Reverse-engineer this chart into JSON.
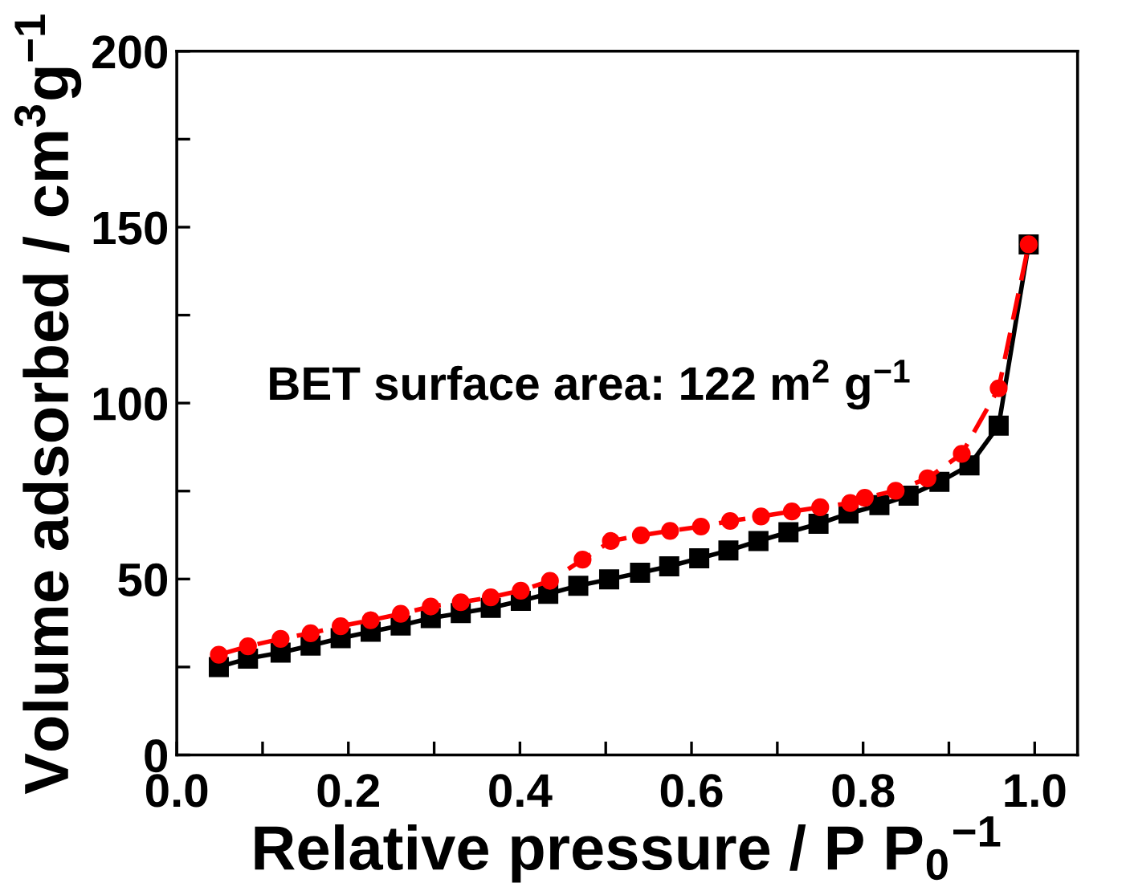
{
  "chart_data": {
    "type": "line",
    "xlabel": "Relative pressure / P P$_{0}$$^{−1}$",
    "ylabel": "Volume adsorbed / cm$^{3}$g$^{−1}$",
    "annotations": [
      "BET surface area: 122 m$^{2}$ g$^{−1}$"
    ],
    "xlim": [
      0.0,
      1.05
    ],
    "ylim": [
      0,
      200
    ],
    "xticks": [
      {
        "value": 0.0,
        "label": "0.0"
      },
      {
        "value": 0.1,
        "label": null
      },
      {
        "value": 0.2,
        "label": "0.2"
      },
      {
        "value": 0.3,
        "label": null
      },
      {
        "value": 0.4,
        "label": "0.4"
      },
      {
        "value": 0.5,
        "label": null
      },
      {
        "value": 0.6,
        "label": "0.6"
      },
      {
        "value": 0.7,
        "label": null
      },
      {
        "value": 0.8,
        "label": "0.8"
      },
      {
        "value": 0.9,
        "label": null
      },
      {
        "value": 1.0,
        "label": "1.0"
      }
    ],
    "yticks": [
      0,
      {
        "value": 25,
        "label": null
      },
      50,
      {
        "value": 75,
        "label": null
      },
      100,
      {
        "value": 125,
        "label": null
      },
      150,
      {
        "value": 175,
        "label": null
      },
      200
    ],
    "grid": false,
    "legend": false,
    "series": [
      {
        "color": "#000000",
        "marker": "square",
        "line_style": "solid",
        "x": [
          0.049,
          0.083,
          0.121,
          0.156,
          0.191,
          0.226,
          0.261,
          0.296,
          0.331,
          0.366,
          0.401,
          0.433,
          0.468,
          0.504,
          0.54,
          0.574,
          0.609,
          0.643,
          0.678,
          0.713,
          0.748,
          0.783,
          0.819,
          0.853,
          0.889,
          0.924,
          0.958,
          0.993
        ],
        "values": [
          25.0,
          27.4,
          29.1,
          31.1,
          33.2,
          35.0,
          36.8,
          38.9,
          40.3,
          41.8,
          43.8,
          45.8,
          48.1,
          49.9,
          51.8,
          53.6,
          55.9,
          58.1,
          60.8,
          63.3,
          65.7,
          68.6,
          71.0,
          73.7,
          77.6,
          82.3,
          93.6,
          145.1
        ]
      },
      {
        "color": "#ff0000",
        "marker": "circle",
        "line_style": "dashed",
        "x": [
          0.049,
          0.083,
          0.121,
          0.156,
          0.191,
          0.226,
          0.261,
          0.296,
          0.331,
          0.366,
          0.401,
          0.435,
          0.473,
          0.506,
          0.541,
          0.575,
          0.611,
          0.645,
          0.681,
          0.717,
          0.75,
          0.785,
          0.802,
          0.838,
          0.875,
          0.915,
          0.958,
          0.993
        ],
        "values": [
          28.5,
          30.9,
          33.0,
          34.6,
          36.6,
          38.3,
          40.1,
          42.2,
          43.4,
          44.8,
          46.7,
          49.5,
          55.5,
          60.8,
          62.4,
          63.7,
          64.9,
          66.5,
          67.8,
          69.2,
          70.4,
          71.6,
          73.1,
          75.1,
          78.6,
          85.6,
          104.2,
          145.1
        ]
      }
    ]
  }
}
